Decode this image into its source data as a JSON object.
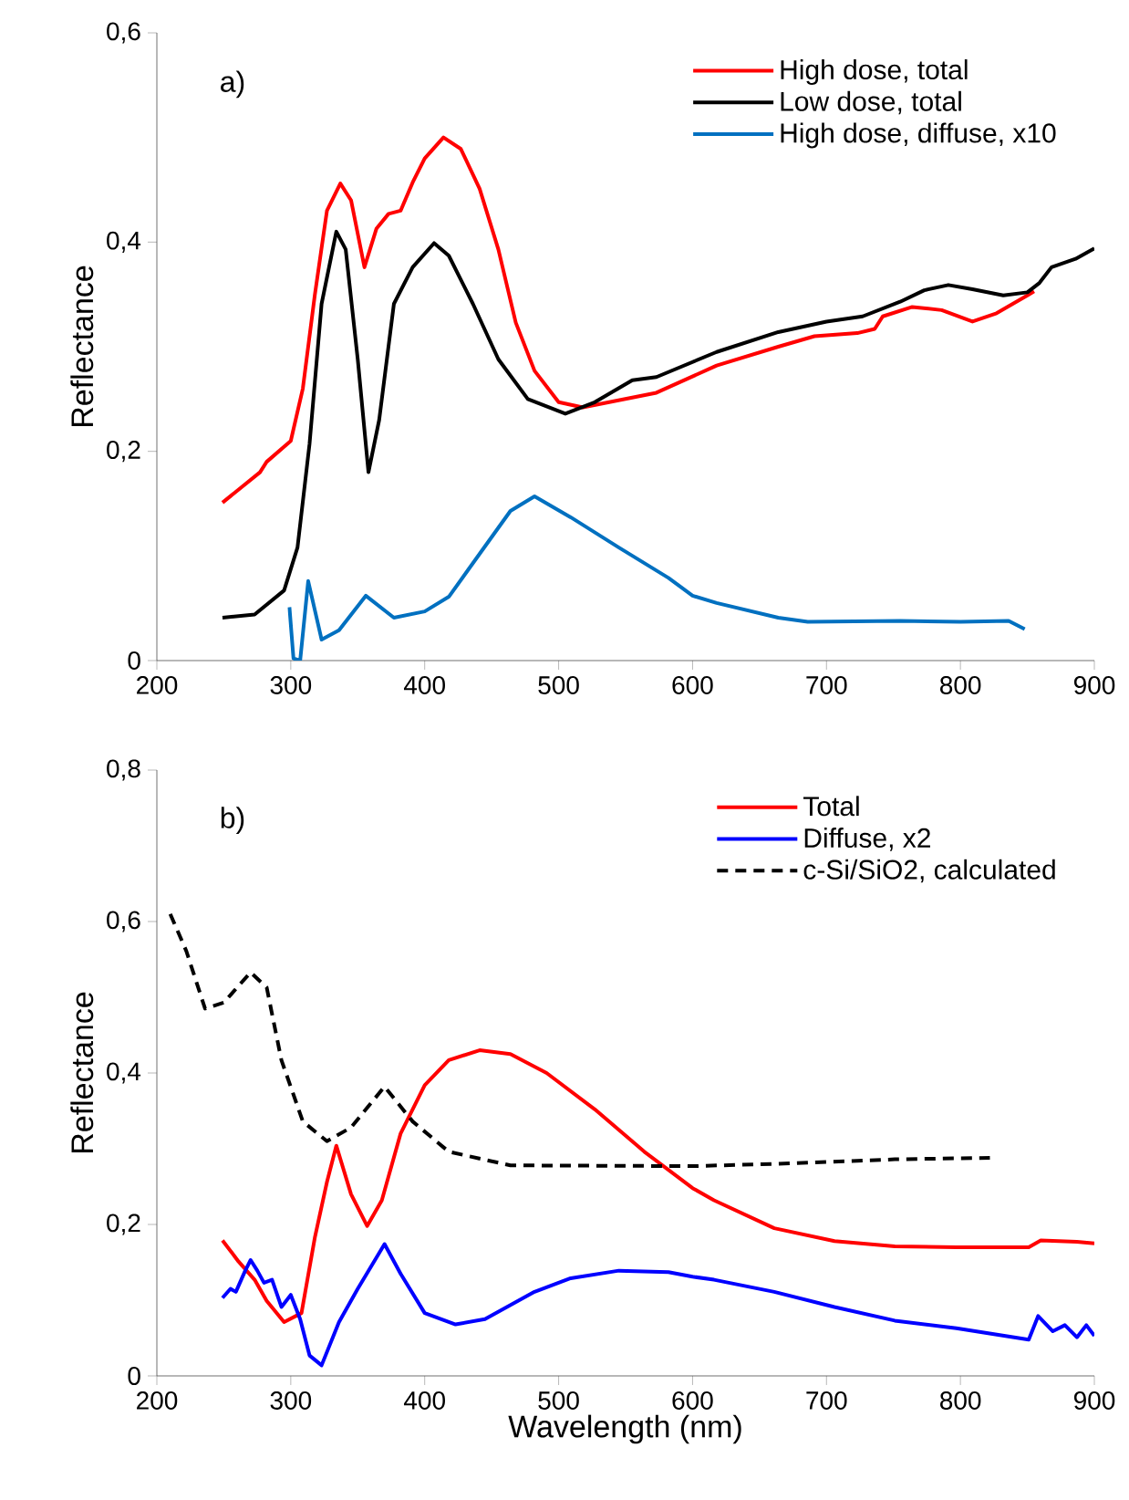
{
  "chart_data": [
    {
      "type": "line",
      "ylabel": "Reflectance",
      "annotations": [
        "a)"
      ],
      "xlim": [
        200,
        900
      ],
      "ylim": [
        0,
        0.6
      ],
      "xticks": [
        200,
        300,
        400,
        500,
        600,
        700,
        800,
        900
      ],
      "yticks": [
        0,
        {
          "value": 0.2,
          "label": "0,2"
        },
        {
          "value": 0.4,
          "label": "0,4"
        },
        {
          "value": 0.6,
          "label": "0,6"
        }
      ],
      "grid": false,
      "legend": "top right",
      "series": [
        {
          "name": "High dose, total",
          "color": "#ff0000",
          "line_style": "solid",
          "x": [
            249,
            277,
            282,
            300,
            309,
            318,
            327,
            337,
            345,
            355,
            364,
            373,
            382,
            391,
            400,
            414,
            427,
            441,
            455,
            468,
            482,
            500,
            518,
            573,
            618,
            664,
            691,
            723,
            736,
            742,
            764,
            786,
            809,
            827,
            850,
            855
          ],
          "values": [
            0.151,
            0.18,
            0.19,
            0.21,
            0.26,
            0.35,
            0.43,
            0.456,
            0.44,
            0.376,
            0.413,
            0.427,
            0.43,
            0.457,
            0.48,
            0.5,
            0.489,
            0.451,
            0.393,
            0.323,
            0.277,
            0.247,
            0.242,
            0.256,
            0.282,
            0.3,
            0.31,
            0.313,
            0.317,
            0.329,
            0.338,
            0.335,
            0.324,
            0.332,
            0.349,
            0.353
          ]
        },
        {
          "name": "Low dose, total",
          "color": "#000000",
          "line_style": "solid",
          "x": [
            249,
            273,
            295,
            305,
            314,
            323,
            334,
            341,
            350,
            358,
            366,
            377,
            391,
            407,
            418,
            436,
            455,
            477,
            505,
            527,
            555,
            573,
            618,
            664,
            700,
            727,
            755,
            773,
            791,
            809,
            832,
            850,
            859,
            868,
            886,
            900
          ],
          "values": [
            0.041,
            0.044,
            0.067,
            0.108,
            0.207,
            0.341,
            0.41,
            0.393,
            0.288,
            0.18,
            0.23,
            0.341,
            0.376,
            0.399,
            0.387,
            0.341,
            0.288,
            0.25,
            0.236,
            0.247,
            0.268,
            0.271,
            0.295,
            0.314,
            0.324,
            0.329,
            0.343,
            0.354,
            0.359,
            0.355,
            0.349,
            0.352,
            0.361,
            0.376,
            0.384,
            0.394
          ]
        },
        {
          "name": "High dose, diffuse, x10",
          "color": "#0070c0",
          "line_style": "solid",
          "x": [
            299,
            302,
            307,
            313,
            323,
            336,
            356,
            377,
            400,
            418,
            441,
            464,
            482,
            509,
            545,
            582,
            600,
            618,
            664,
            686,
            755,
            800,
            836,
            848
          ],
          "values": [
            0.051,
            0.002,
            0.0,
            0.076,
            0.02,
            0.029,
            0.062,
            0.041,
            0.047,
            0.061,
            0.102,
            0.143,
            0.157,
            0.137,
            0.108,
            0.079,
            0.062,
            0.055,
            0.041,
            0.037,
            0.038,
            0.037,
            0.038,
            0.03
          ]
        }
      ]
    },
    {
      "type": "line",
      "xlabel": "Wavelength (nm)",
      "ylabel": "Reflectance",
      "annotations": [
        "b)"
      ],
      "xlim": [
        200,
        900
      ],
      "ylim": [
        0,
        0.8
      ],
      "xticks": [
        200,
        300,
        400,
        500,
        600,
        700,
        800,
        900
      ],
      "yticks": [
        0,
        {
          "value": 0.2,
          "label": "0,2"
        },
        {
          "value": 0.4,
          "label": "0,4"
        },
        {
          "value": 0.6,
          "label": "0,6"
        },
        {
          "value": 0.8,
          "label": "0,8"
        }
      ],
      "grid": false,
      "legend": "top right",
      "series": [
        {
          "name": "Total",
          "color": "#ff0000",
          "line_style": "solid",
          "x": [
            249,
            261,
            273,
            282,
            295,
            308,
            318,
            327,
            334,
            345,
            357,
            368,
            382,
            400,
            418,
            441,
            464,
            491,
            527,
            564,
            600,
            616,
            661,
            706,
            751,
            797,
            851,
            860,
            887,
            900
          ],
          "values": [
            0.179,
            0.151,
            0.127,
            0.099,
            0.071,
            0.083,
            0.183,
            0.256,
            0.304,
            0.24,
            0.198,
            0.232,
            0.32,
            0.384,
            0.417,
            0.43,
            0.425,
            0.4,
            0.352,
            0.296,
            0.248,
            0.232,
            0.195,
            0.178,
            0.171,
            0.17,
            0.17,
            0.179,
            0.177,
            0.175
          ]
        },
        {
          "name": "Diffuse, x2",
          "color": "#0000ff",
          "line_style": "solid",
          "x": [
            249,
            255,
            259,
            266,
            270,
            275,
            280,
            286,
            293,
            300,
            307,
            314,
            323,
            336,
            350,
            370,
            382,
            400,
            423,
            445,
            482,
            509,
            545,
            582,
            600,
            616,
            661,
            706,
            751,
            797,
            851,
            858,
            869,
            878,
            887,
            894,
            900
          ],
          "values": [
            0.103,
            0.115,
            0.111,
            0.139,
            0.153,
            0.139,
            0.123,
            0.127,
            0.091,
            0.107,
            0.075,
            0.027,
            0.014,
            0.071,
            0.115,
            0.174,
            0.135,
            0.083,
            0.068,
            0.075,
            0.111,
            0.129,
            0.139,
            0.137,
            0.131,
            0.127,
            0.111,
            0.091,
            0.073,
            0.063,
            0.048,
            0.079,
            0.059,
            0.067,
            0.051,
            0.067,
            0.053
          ]
        },
        {
          "name": "c-Si/SiO2, calculated",
          "color": "#000000",
          "line_style": "dashed",
          "x": [
            210,
            222,
            236,
            250,
            270,
            282,
            293,
            309,
            327,
            345,
            370,
            391,
            418,
            464,
            600,
            661,
            751,
            822
          ],
          "values": [
            0.61,
            0.561,
            0.485,
            0.493,
            0.533,
            0.513,
            0.417,
            0.336,
            0.31,
            0.328,
            0.382,
            0.336,
            0.296,
            0.278,
            0.277,
            0.28,
            0.286,
            0.288
          ]
        }
      ]
    }
  ]
}
